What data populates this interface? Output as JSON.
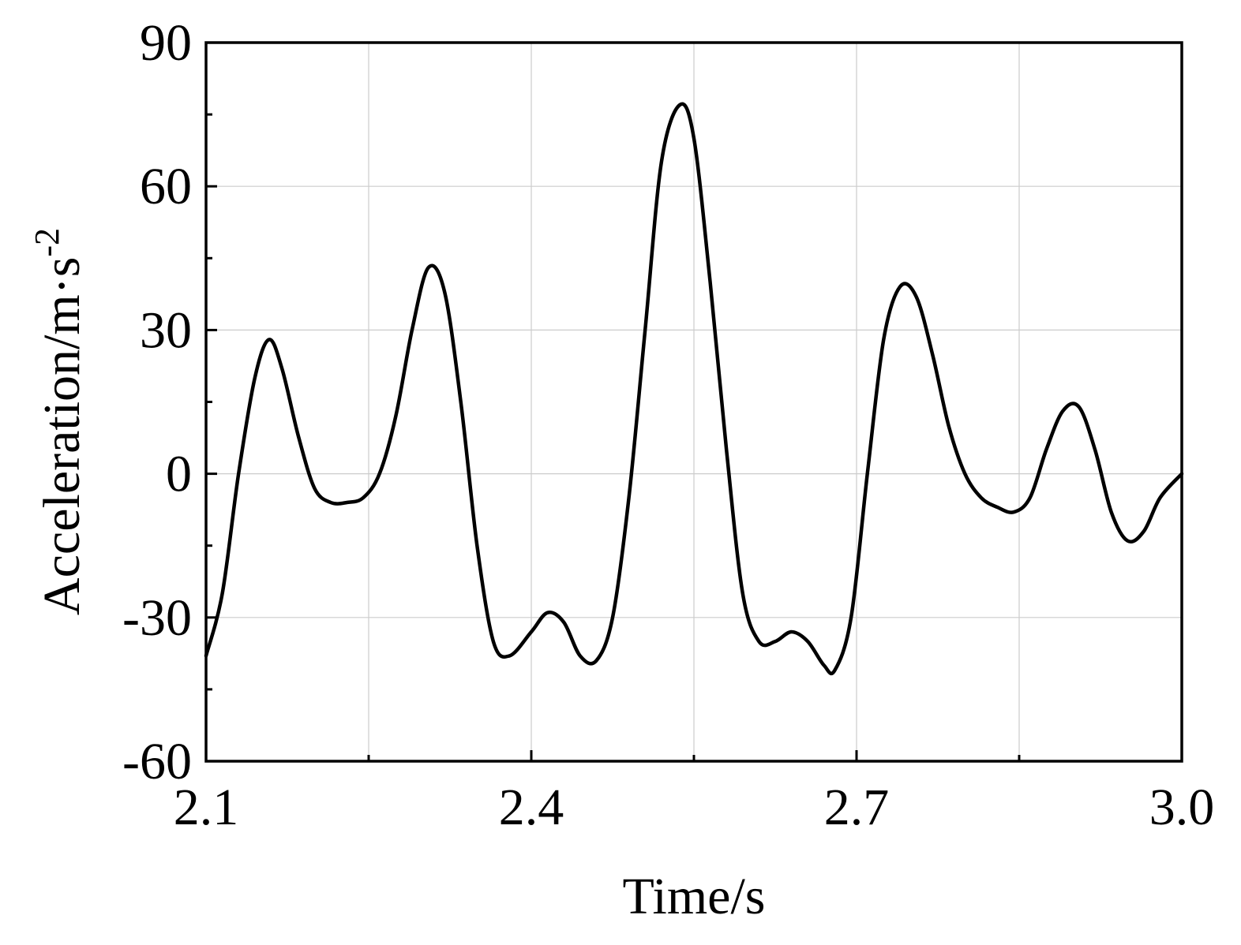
{
  "chart_data": {
    "type": "line",
    "title": "",
    "xlabel": "Time/s",
    "ylabel": {
      "base": "Acceleration/m·s",
      "superscript": "-2"
    },
    "xlim": [
      2.1,
      3.0
    ],
    "ylim": [
      -60,
      90
    ],
    "x_ticks": [
      2.1,
      2.4,
      2.7,
      3.0
    ],
    "x_tick_labels": [
      "2.1",
      "2.4",
      "2.7",
      "3.0"
    ],
    "x_minor_ticks": [
      2.25,
      2.55,
      2.85
    ],
    "y_ticks": [
      -60,
      -30,
      0,
      30,
      60,
      90
    ],
    "y_tick_labels": [
      "-60",
      "-30",
      "0",
      "30",
      "60",
      "90"
    ],
    "y_minor_ticks": [
      -45,
      -15,
      15,
      45,
      75
    ],
    "grid": true,
    "legend": "none",
    "line_color": "#000000",
    "series": [
      {
        "x": [
          2.1,
          2.115,
          2.13,
          2.145,
          2.158,
          2.17,
          2.185,
          2.2,
          2.215,
          2.23,
          2.245,
          2.26,
          2.275,
          2.29,
          2.305,
          2.32,
          2.335,
          2.35,
          2.365,
          2.38,
          2.4,
          2.415,
          2.43,
          2.445,
          2.46,
          2.475,
          2.49,
          2.505,
          2.52,
          2.537,
          2.55,
          2.565,
          2.58,
          2.595,
          2.61,
          2.625,
          2.64,
          2.655,
          2.67,
          2.68,
          2.695,
          2.71,
          2.725,
          2.74,
          2.755,
          2.77,
          2.785,
          2.8,
          2.815,
          2.83,
          2.845,
          2.86,
          2.875,
          2.89,
          2.905,
          2.92,
          2.935,
          2.95,
          2.965,
          2.98,
          3.0
        ],
        "y": [
          -38,
          -25,
          0,
          20,
          28,
          22,
          8,
          -3,
          -6,
          -6,
          -5,
          0,
          12,
          30,
          43,
          38,
          15,
          -15,
          -35,
          -38,
          -33,
          -29,
          -31,
          -38,
          -39,
          -30,
          -5,
          30,
          65,
          77,
          70,
          40,
          5,
          -25,
          -35,
          -35,
          -33,
          -35,
          -40,
          -41,
          -30,
          0,
          28,
          39,
          37,
          25,
          10,
          0,
          -5,
          -7,
          -8,
          -5,
          5,
          13,
          14,
          5,
          -8,
          -14,
          -12,
          -5,
          0
        ]
      }
    ]
  }
}
